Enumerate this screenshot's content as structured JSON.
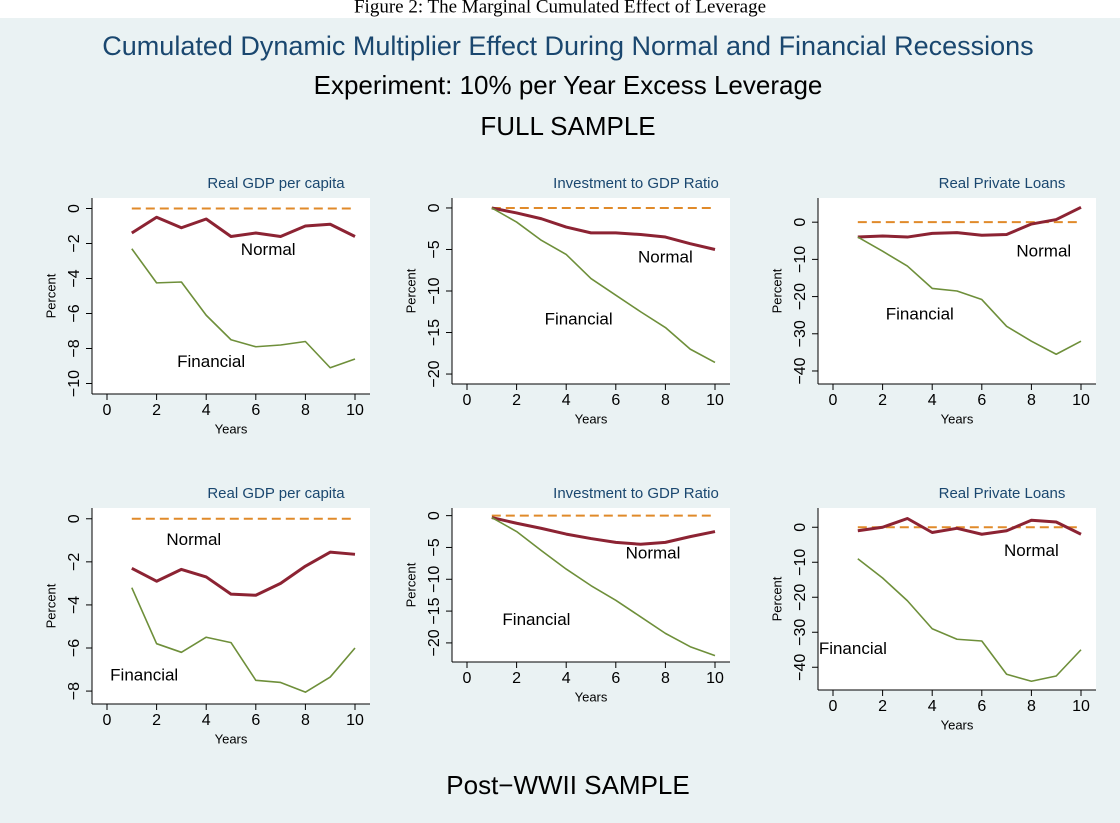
{
  "caption": "Figure 2: The Marginal Cumulated Effect of Leverage",
  "title": "Cumulated Dynamic Multiplier Effect During Normal and Financial Recessions",
  "subtitle": "Experiment: 10% per Year Excess Leverage",
  "section_top": "FULL SAMPLE",
  "section_bottom": "Post−WWII SAMPLE",
  "chart_data": [
    {
      "type": "line",
      "title": "Real GDP per capita",
      "x_label": "Years",
      "y_label": "Percent",
      "x": [
        1,
        2,
        3,
        4,
        5,
        6,
        7,
        8,
        9,
        10
      ],
      "xlim": [
        0,
        10
      ],
      "xticks": [
        0,
        2,
        4,
        6,
        8,
        10
      ],
      "ylim": [
        -10.6,
        0.6
      ],
      "yticks": [
        0,
        {
          "value": -2,
          "label": "−2"
        },
        {
          "value": -4,
          "label": "−4"
        },
        {
          "value": -6,
          "label": "−6"
        },
        {
          "value": -8,
          "label": "−8"
        },
        {
          "value": -10,
          "label": "−10"
        }
      ],
      "reference_line": {
        "value": 0,
        "color": "#e08a2a"
      },
      "series": [
        {
          "name": "Normal",
          "color": "#8c2333",
          "values": [
            -1.4,
            -0.5,
            -1.1,
            -0.6,
            -1.6,
            -1.4,
            -1.6,
            -1.0,
            -0.9,
            -1.6
          ]
        },
        {
          "name": "Financial",
          "color": "#6e8f3a",
          "values": [
            -2.3,
            -4.25,
            -4.2,
            -6.1,
            -7.5,
            -7.9,
            -7.8,
            -7.6,
            -9.1,
            -8.6
          ]
        }
      ]
    },
    {
      "type": "line",
      "title": "Investment to GDP Ratio",
      "x_label": "Years",
      "y_label": "Percent",
      "x": [
        1,
        2,
        3,
        4,
        5,
        6,
        7,
        8,
        9,
        10
      ],
      "xlim": [
        0,
        10
      ],
      "xticks": [
        0,
        2,
        4,
        6,
        8,
        10
      ],
      "ylim": [
        -21.2,
        1.2
      ],
      "yticks": [
        0,
        {
          "value": -5,
          "label": "−5"
        },
        {
          "value": -10,
          "label": "−10"
        },
        {
          "value": -15,
          "label": "−15"
        },
        {
          "value": -20,
          "label": "−20"
        }
      ],
      "reference_line": {
        "value": 0,
        "color": "#e08a2a"
      },
      "series": [
        {
          "name": "Normal",
          "color": "#8c2333",
          "values": [
            0,
            -0.6,
            -1.3,
            -2.3,
            -3.0,
            -3.0,
            -3.2,
            -3.5,
            -4.3,
            -5.0
          ]
        },
        {
          "name": "Financial",
          "color": "#6e8f3a",
          "values": [
            0,
            -1.7,
            -3.9,
            -5.6,
            -8.5,
            -10.5,
            -12.5,
            -14.4,
            -17.0,
            -18.6
          ]
        }
      ]
    },
    {
      "type": "line",
      "title": "Real Private Loans",
      "x_label": "Years",
      "y_label": "Percent",
      "x": [
        1,
        2,
        3,
        4,
        5,
        6,
        7,
        8,
        9,
        10
      ],
      "xlim": [
        0,
        10
      ],
      "xticks": [
        0,
        2,
        4,
        6,
        8,
        10
      ],
      "ylim": [
        -43.5,
        6.5
      ],
      "yticks": [
        0,
        {
          "value": -10,
          "label": "−10"
        },
        {
          "value": -20,
          "label": "−20"
        },
        {
          "value": -30,
          "label": "−30"
        },
        {
          "value": -40,
          "label": "−40"
        }
      ],
      "reference_line": {
        "value": 0,
        "color": "#e08a2a"
      },
      "series": [
        {
          "name": "Normal",
          "color": "#8c2333",
          "values": [
            -4,
            -3.7,
            -4,
            -3,
            -2.8,
            -3.5,
            -3.3,
            -0.5,
            0.7,
            4
          ]
        },
        {
          "name": "Financial",
          "color": "#6e8f3a",
          "values": [
            -4,
            -7.8,
            -11.8,
            -17.8,
            -18.5,
            -20.8,
            -28,
            -32,
            -35.5,
            -32
          ]
        }
      ]
    },
    {
      "type": "line",
      "title": "Real GDP per capita",
      "x_label": "Years",
      "y_label": "Percent",
      "x": [
        1,
        2,
        3,
        4,
        5,
        6,
        7,
        8,
        9,
        10
      ],
      "xlim": [
        0,
        10
      ],
      "xticks": [
        0,
        2,
        4,
        6,
        8,
        10
      ],
      "ylim": [
        -8.6,
        0.5
      ],
      "yticks": [
        0,
        {
          "value": -2,
          "label": "−2"
        },
        {
          "value": -4,
          "label": "−4"
        },
        {
          "value": -6,
          "label": "−6"
        },
        {
          "value": -8,
          "label": "−8"
        }
      ],
      "reference_line": {
        "value": 0,
        "color": "#e08a2a"
      },
      "series": [
        {
          "name": "Normal",
          "color": "#8c2333",
          "values": [
            -2.3,
            -2.9,
            -2.35,
            -2.7,
            -3.5,
            -3.55,
            -3.0,
            -2.2,
            -1.55,
            -1.65
          ]
        },
        {
          "name": "Financial",
          "color": "#6e8f3a",
          "values": [
            -3.2,
            -5.8,
            -6.2,
            -5.5,
            -5.75,
            -7.5,
            -7.6,
            -8.05,
            -7.35,
            -6.0
          ]
        }
      ]
    },
    {
      "type": "line",
      "title": "Investment to GDP Ratio",
      "x_label": "Years",
      "y_label": "Percent",
      "x": [
        1,
        2,
        3,
        4,
        5,
        6,
        7,
        8,
        9,
        10
      ],
      "xlim": [
        0,
        10
      ],
      "xticks": [
        0,
        2,
        4,
        6,
        8,
        10
      ],
      "ylim": [
        -23,
        1.2
      ],
      "yticks": [
        0,
        {
          "value": -5,
          "label": "−5"
        },
        {
          "value": -10,
          "label": "−10"
        },
        {
          "value": -15,
          "label": "−15"
        },
        {
          "value": -20,
          "label": "−20"
        }
      ],
      "reference_line": {
        "value": 0,
        "color": "#e08a2a"
      },
      "series": [
        {
          "name": "Normal",
          "color": "#8c2333",
          "values": [
            -0.3,
            -1.2,
            -2,
            -2.9,
            -3.6,
            -4.2,
            -4.5,
            -4.2,
            -3.3,
            -2.5
          ]
        },
        {
          "name": "Financial",
          "color": "#6e8f3a",
          "values": [
            -0.3,
            -2.5,
            -5.5,
            -8.4,
            -11,
            -13.3,
            -15.9,
            -18.5,
            -20.6,
            -22
          ]
        }
      ]
    },
    {
      "type": "line",
      "title": "Real Private Loans",
      "x_label": "Years",
      "y_label": "Percent",
      "x": [
        1,
        2,
        3,
        4,
        5,
        6,
        7,
        8,
        9,
        10
      ],
      "xlim": [
        0,
        10
      ],
      "xticks": [
        0,
        2,
        4,
        6,
        8,
        10
      ],
      "ylim": [
        -46.5,
        5.5
      ],
      "yticks": [
        0,
        {
          "value": -10,
          "label": "−10"
        },
        {
          "value": -20,
          "label": "−20"
        },
        {
          "value": -30,
          "label": "−30"
        },
        {
          "value": -40,
          "label": "−40"
        }
      ],
      "reference_line": {
        "value": 0,
        "color": "#e08a2a"
      },
      "series": [
        {
          "name": "Normal",
          "color": "#8c2333",
          "values": [
            -1,
            0,
            2.5,
            -1.5,
            -0.3,
            -2,
            -1,
            2,
            1.5,
            -2
          ]
        },
        {
          "name": "Financial",
          "color": "#6e8f3a",
          "values": [
            -9,
            -14.5,
            -21,
            -29,
            -32,
            -32.5,
            -42,
            -44,
            -42.5,
            -35
          ]
        }
      ]
    }
  ]
}
